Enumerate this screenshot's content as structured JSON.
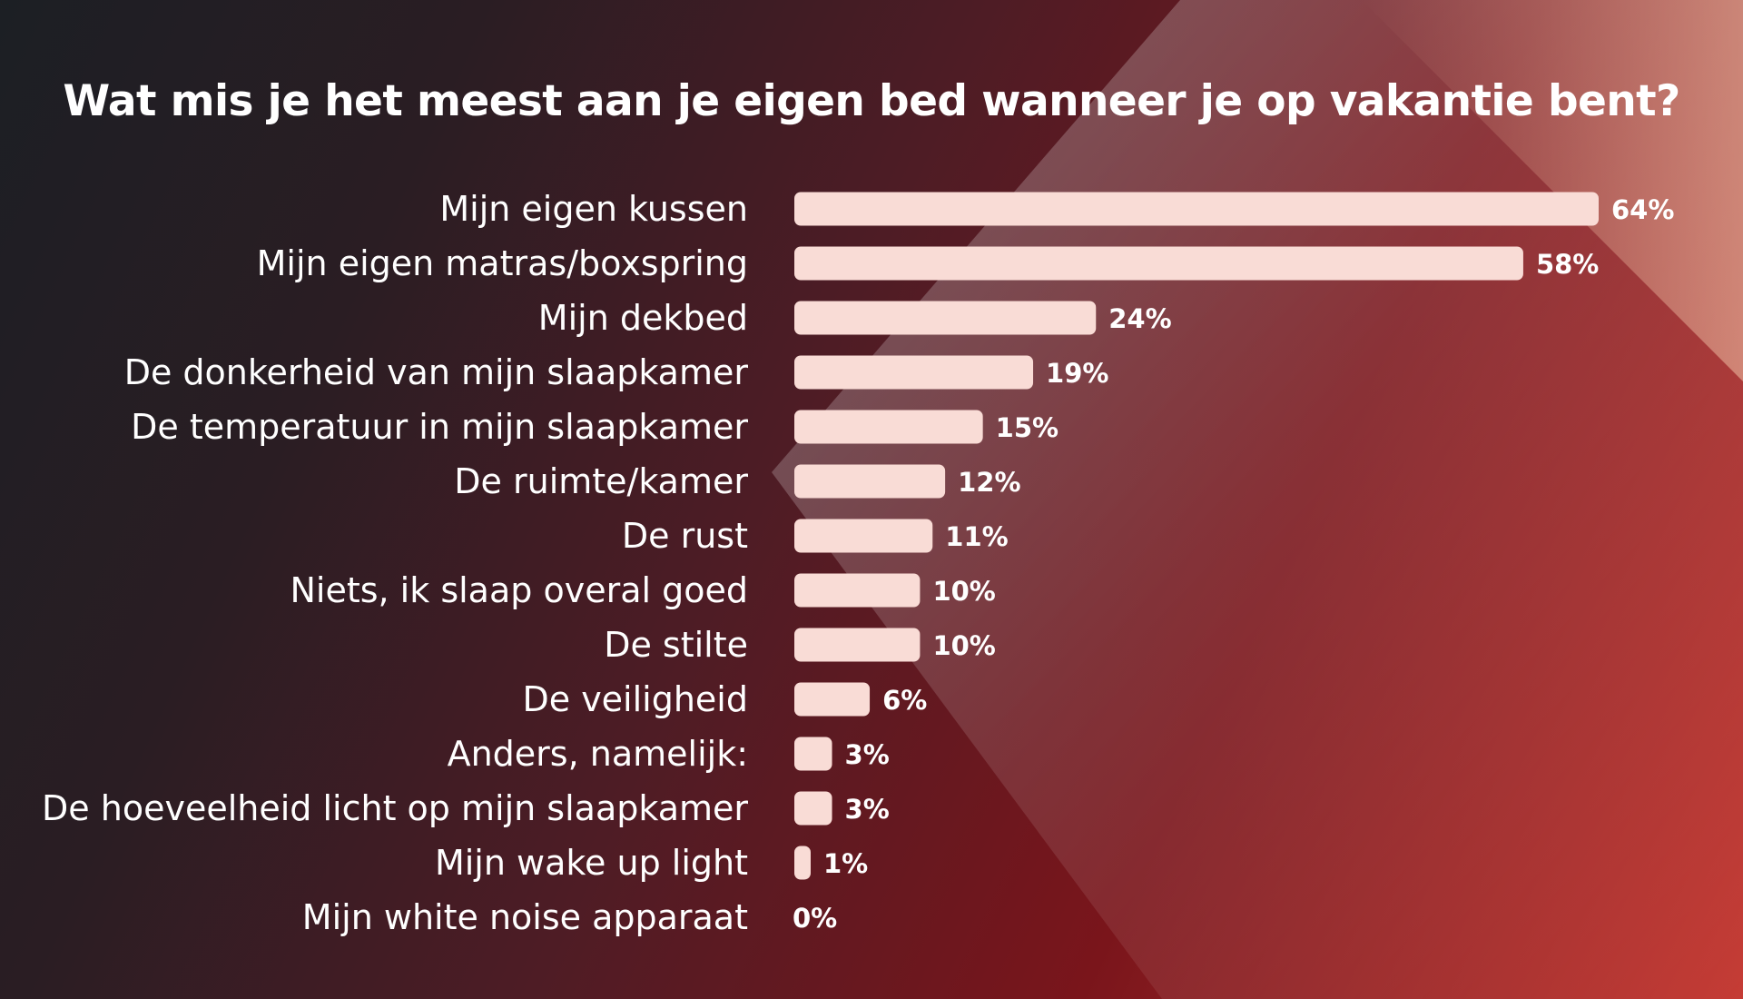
{
  "chart_data": {
    "type": "bar",
    "orientation": "horizontal",
    "title": "Wat mis je het meest aan je eigen bed wanneer je op vakantie bent?",
    "categories": [
      "Mijn eigen kussen",
      "Mijn eigen matras/boxspring",
      "Mijn dekbed",
      "De donkerheid van mijn slaapkamer",
      "De temperatuur in mijn slaapkamer",
      "De ruimte/kamer",
      "De rust",
      "Niets, ik slaap overal goed",
      "De stilte",
      "De veiligheid",
      "Anders, namelijk:",
      "De hoeveelheid licht op mijn slaapkamer",
      "Mijn wake up light",
      "Mijn white noise apparaat"
    ],
    "values": [
      64,
      58,
      24,
      19,
      15,
      12,
      11,
      10,
      10,
      6,
      3,
      3,
      1,
      0
    ],
    "value_labels": [
      "64%",
      "58%",
      "24%",
      "19%",
      "15%",
      "12%",
      "11%",
      "10%",
      "10%",
      "6%",
      "3%",
      "3%",
      "1%",
      "0%"
    ],
    "unit": "%",
    "xlim": [
      0,
      64
    ],
    "grid": false,
    "legend": "none",
    "colors": {
      "bar": "#f9dcd6",
      "text": "#ffffff"
    }
  }
}
